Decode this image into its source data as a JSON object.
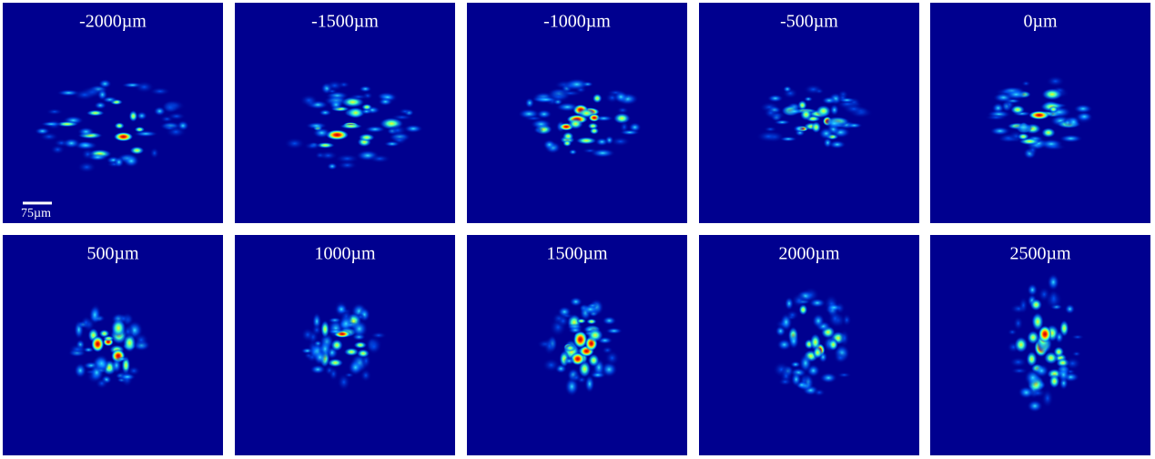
{
  "panels": [
    {
      "label": "-2000µm"
    },
    {
      "label": "-1500µm"
    },
    {
      "label": "-1000µm"
    },
    {
      "label": "-500µm"
    },
    {
      "label": "0µm"
    },
    {
      "label": "500µm"
    },
    {
      "label": "1000µm"
    },
    {
      "label": "1500µm"
    },
    {
      "label": "2000µm"
    },
    {
      "label": "2500µm"
    }
  ],
  "scale_bar": {
    "label": "75µm"
  }
}
